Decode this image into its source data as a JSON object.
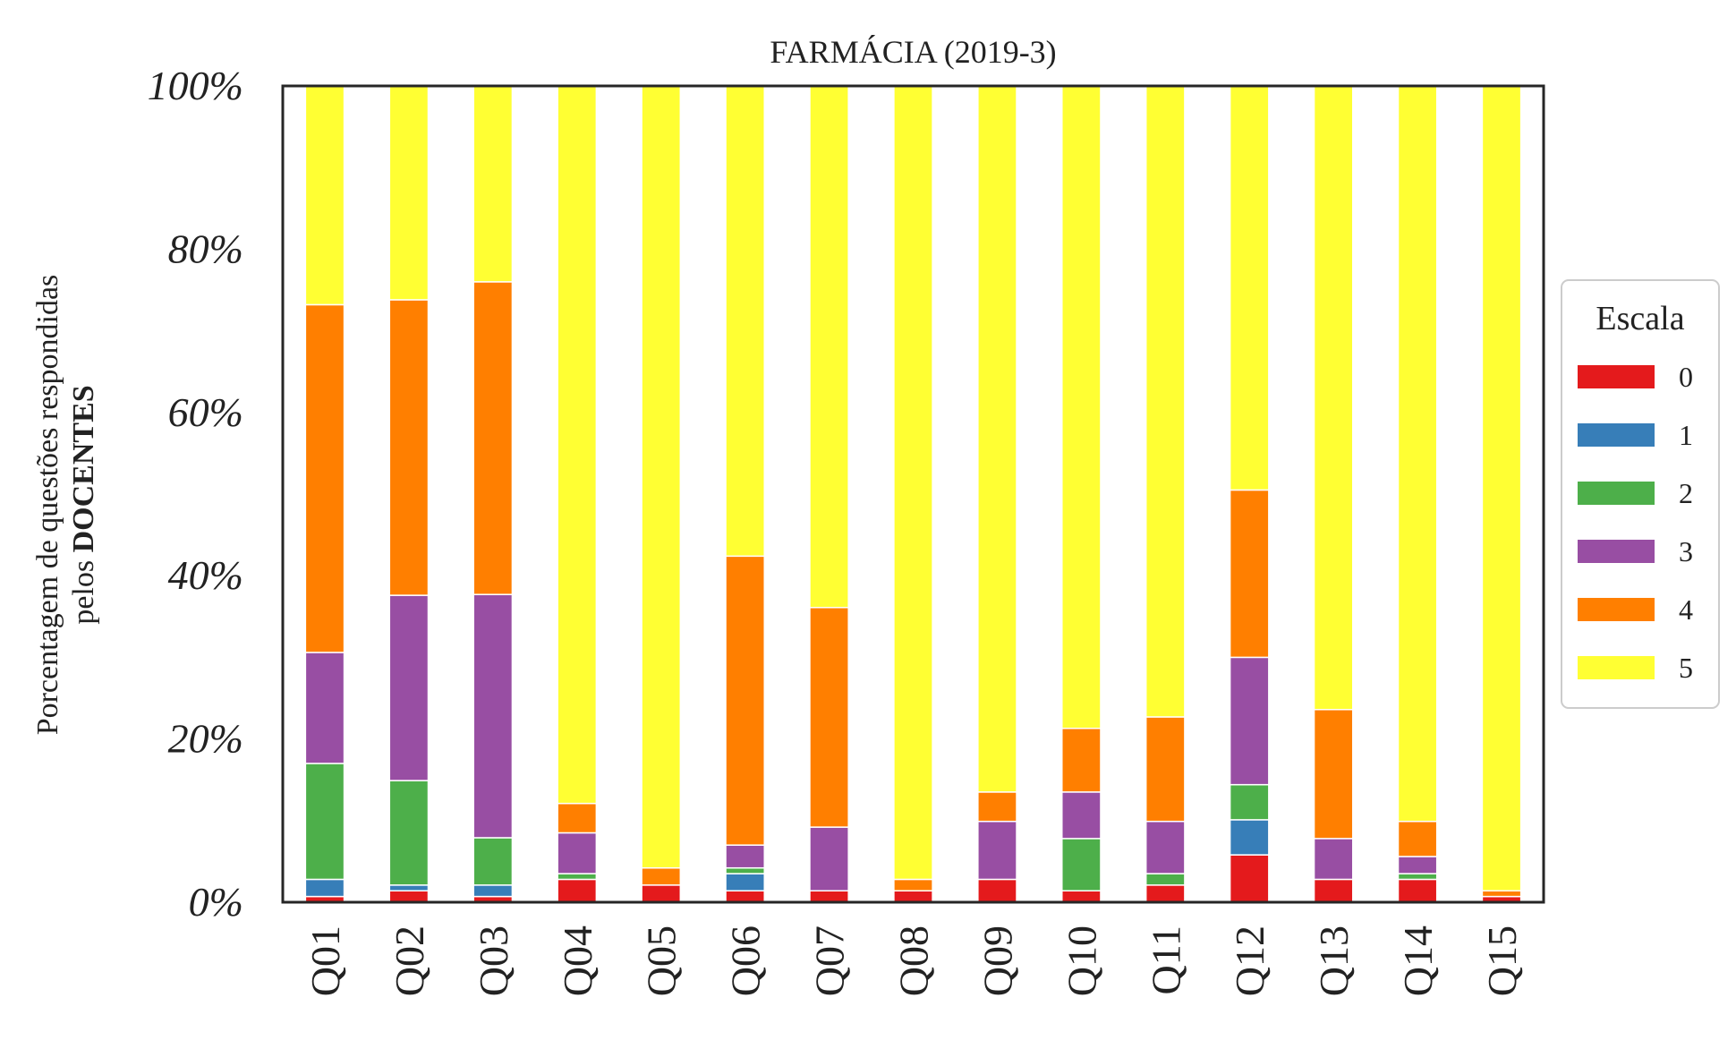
{
  "chart_data": {
    "type": "bar",
    "stacked": true,
    "title": "FARMÁCIA (2019-3)",
    "ylabel_line1": "Porcentagem de questões respondidas",
    "ylabel_line2_prefix": "pelos ",
    "ylabel_line2_bold": "DOCENTES",
    "xlabel": "",
    "ylim": [
      0,
      100
    ],
    "yticks": [
      0,
      20,
      40,
      60,
      80,
      100
    ],
    "ytick_labels": [
      "0%",
      "20%",
      "40%",
      "60%",
      "80%",
      "100%"
    ],
    "categories": [
      "Q01",
      "Q02",
      "Q03",
      "Q04",
      "Q05",
      "Q06",
      "Q07",
      "Q08",
      "Q09",
      "Q10",
      "Q11",
      "Q12",
      "Q13",
      "Q14",
      "Q15"
    ],
    "grid": false,
    "legend": {
      "title": "Escala",
      "position": "right"
    },
    "series": [
      {
        "name": "0",
        "color": "#e41a1c",
        "values": [
          0.7,
          1.4,
          0.7,
          2.8,
          2.1,
          1.4,
          1.4,
          1.4,
          2.8,
          1.4,
          2.1,
          5.8,
          2.8,
          2.8,
          0.7
        ]
      },
      {
        "name": "1",
        "color": "#377eb8",
        "values": [
          2.1,
          0.7,
          1.4,
          0.0,
          0.0,
          2.1,
          0.0,
          0.0,
          0.0,
          0.0,
          0.0,
          4.3,
          0.0,
          0.0,
          0.0
        ]
      },
      {
        "name": "2",
        "color": "#4daf4a",
        "values": [
          14.2,
          12.8,
          5.8,
          0.7,
          0.0,
          0.7,
          0.0,
          0.0,
          0.0,
          6.4,
          1.4,
          4.3,
          0.0,
          0.7,
          0.0
        ]
      },
      {
        "name": "3",
        "color": "#984ea3",
        "values": [
          13.6,
          22.7,
          29.8,
          5.0,
          0.0,
          2.8,
          7.8,
          0.0,
          7.1,
          5.7,
          6.4,
          15.6,
          5.0,
          2.1,
          0.0
        ]
      },
      {
        "name": "4",
        "color": "#ff7f00",
        "values": [
          42.6,
          36.2,
          38.3,
          3.6,
          2.1,
          35.4,
          26.9,
          1.4,
          3.6,
          7.8,
          12.8,
          20.5,
          15.8,
          4.3,
          0.7
        ]
      },
      {
        "name": "5",
        "color": "#ffff33",
        "values": [
          26.8,
          26.2,
          24.0,
          87.9,
          95.8,
          57.6,
          63.9,
          97.2,
          86.5,
          78.7,
          77.3,
          49.5,
          76.4,
          90.1,
          98.6
        ]
      }
    ]
  }
}
